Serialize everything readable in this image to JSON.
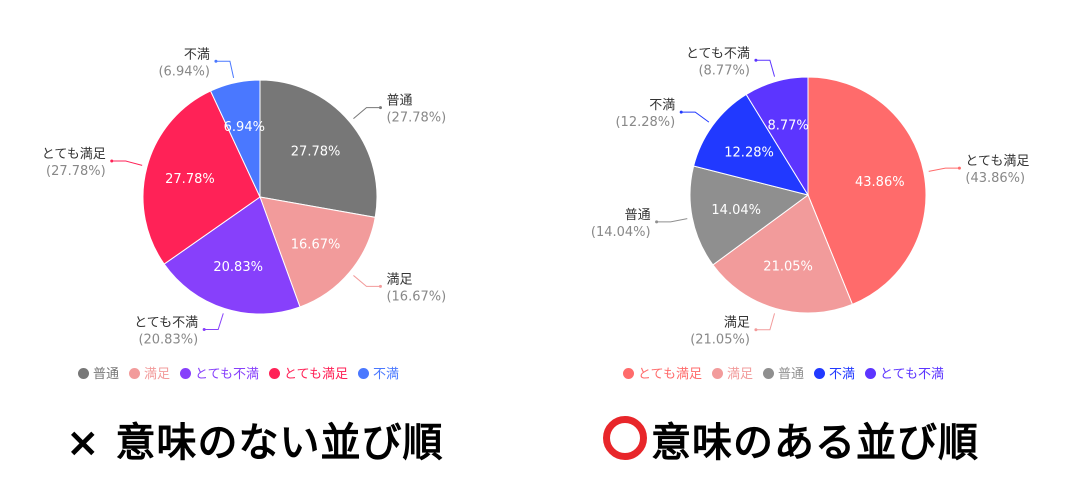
{
  "chart_data": [
    {
      "type": "pie",
      "start_angle": "top, clockwise",
      "categories": [
        "普通",
        "満足",
        "とても不満",
        "とても満足",
        "不満"
      ],
      "values": [
        27.78,
        16.67,
        20.83,
        27.78,
        6.94
      ],
      "labels": [
        "27.78%",
        "16.67%",
        "20.83%",
        "27.78%",
        "6.94%"
      ],
      "outer_labels": [
        "(27.78%)",
        "(16.67%)",
        "(20.83%)",
        "(27.78%)",
        "(6.94%)"
      ],
      "colors": [
        "#777777",
        "#f29b9b",
        "#8740fb",
        "#ff2257",
        "#4a78ff"
      ],
      "legend_position": "bottom",
      "caption": "× 意味のない並び順"
    },
    {
      "type": "pie",
      "start_angle": "top, clockwise",
      "categories": [
        "とても満足",
        "満足",
        "普通",
        "不満",
        "とても不満"
      ],
      "values": [
        43.86,
        21.05,
        14.04,
        12.28,
        8.77
      ],
      "labels": [
        "43.86%",
        "21.05%",
        "14.04%",
        "12.28%",
        "8.77%"
      ],
      "outer_labels": [
        "(43.86%)",
        "(21.05%)",
        "(14.04%)",
        "(12.28%)",
        "(8.77%)"
      ],
      "colors": [
        "#ff6b6b",
        "#f29b9b",
        "#8f8f8f",
        "#2139ff",
        "#5c35ff"
      ],
      "legend_position": "bottom",
      "caption": "意味のある並び順",
      "caption_icon": "red-circle-icon"
    }
  ]
}
